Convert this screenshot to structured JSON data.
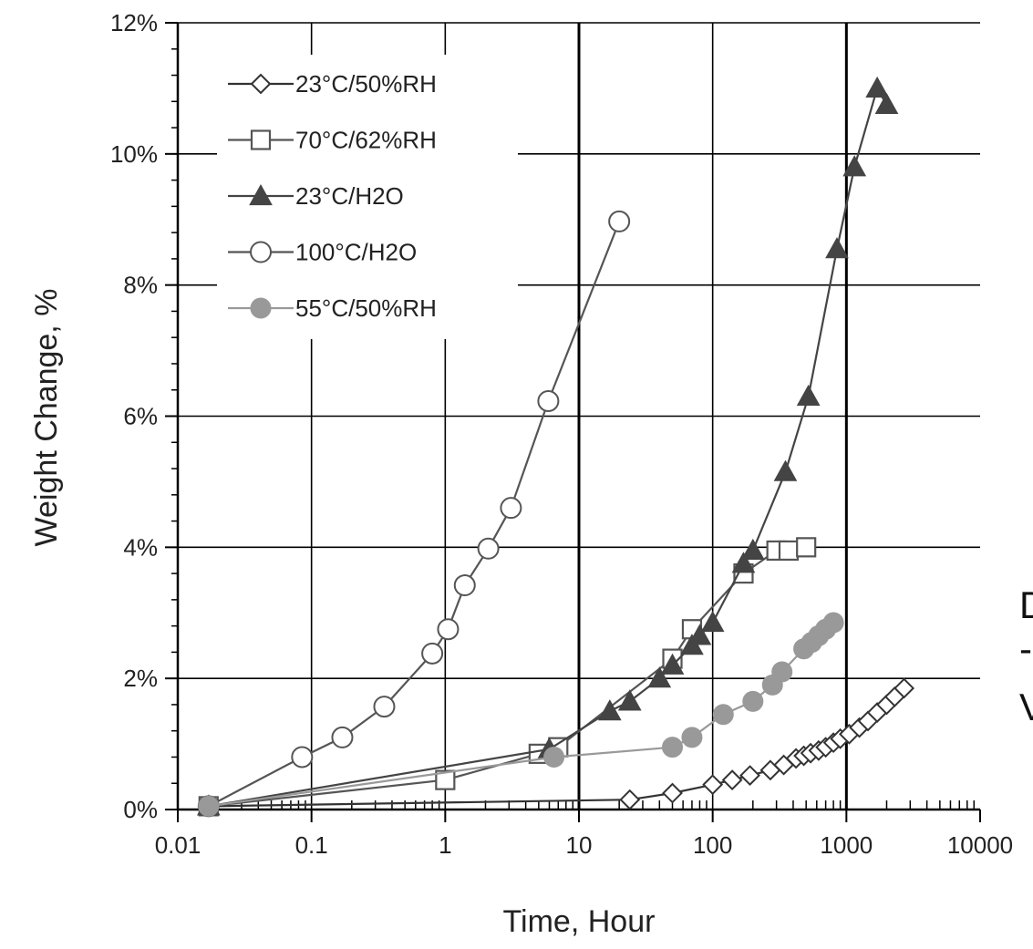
{
  "chart_data": {
    "type": "line",
    "title": "",
    "xlabel": "Time, Hour",
    "ylabel": "Weight Change, %",
    "xscale": "log",
    "xlim": [
      0.01,
      10000
    ],
    "ylim": [
      0,
      12
    ],
    "x_ticks": [
      "0.01",
      "0.1",
      "1",
      "10",
      "100",
      "1000",
      "10000"
    ],
    "y_ticks": [
      "0%",
      "2%",
      "4%",
      "6%",
      "8%",
      "10%",
      "12%"
    ],
    "grid": true,
    "legend_position": "top-left",
    "series": [
      {
        "name": "23°C/50%RH",
        "marker": "diamond-open",
        "color": "#333333",
        "points": [
          [
            0.017,
            0.05
          ],
          [
            24,
            0.15
          ],
          [
            50,
            0.25
          ],
          [
            100,
            0.38
          ],
          [
            140,
            0.45
          ],
          [
            190,
            0.52
          ],
          [
            270,
            0.6
          ],
          [
            340,
            0.68
          ],
          [
            420,
            0.78
          ],
          [
            480,
            0.82
          ],
          [
            540,
            0.86
          ],
          [
            620,
            0.9
          ],
          [
            700,
            0.95
          ],
          [
            800,
            1.02
          ],
          [
            900,
            1.08
          ],
          [
            1050,
            1.15
          ],
          [
            1250,
            1.25
          ],
          [
            1450,
            1.35
          ],
          [
            1700,
            1.48
          ],
          [
            2000,
            1.6
          ],
          [
            2300,
            1.72
          ],
          [
            2700,
            1.85
          ]
        ]
      },
      {
        "name": "70°C/62%RH",
        "marker": "square-open",
        "color": "#555555",
        "points": [
          [
            0.017,
            0.05
          ],
          [
            1,
            0.45
          ],
          [
            5,
            0.85
          ],
          [
            7,
            0.95
          ],
          [
            50,
            2.3
          ],
          [
            70,
            2.75
          ],
          [
            170,
            3.6
          ],
          [
            300,
            3.95
          ],
          [
            370,
            3.95
          ],
          [
            500,
            4.0
          ]
        ]
      },
      {
        "name": "23°C/H2O",
        "marker": "triangle-filled",
        "color": "#444444",
        "points": [
          [
            0.017,
            0.05
          ],
          [
            6,
            0.92
          ],
          [
            17,
            1.5
          ],
          [
            24,
            1.65
          ],
          [
            40,
            2.0
          ],
          [
            50,
            2.2
          ],
          [
            70,
            2.5
          ],
          [
            80,
            2.65
          ],
          [
            100,
            2.85
          ],
          [
            170,
            3.75
          ],
          [
            200,
            3.95
          ],
          [
            350,
            5.15
          ],
          [
            520,
            6.3
          ],
          [
            850,
            8.55
          ],
          [
            1150,
            9.8
          ],
          [
            1700,
            11.0
          ],
          [
            2000,
            10.75
          ]
        ]
      },
      {
        "name": "100°C/H2O",
        "marker": "circle-open",
        "color": "#555555",
        "points": [
          [
            0.017,
            0.05
          ],
          [
            0.085,
            0.8
          ],
          [
            0.17,
            1.1
          ],
          [
            0.35,
            1.57
          ],
          [
            0.8,
            2.38
          ],
          [
            1.05,
            2.75
          ],
          [
            1.4,
            3.42
          ],
          [
            2.1,
            3.98
          ],
          [
            3.1,
            4.6
          ],
          [
            5.9,
            6.23
          ],
          [
            20,
            8.97
          ]
        ]
      },
      {
        "name": "55°C/50%RH",
        "marker": "circle-filled",
        "color": "#999999",
        "points": [
          [
            0.017,
            0.05
          ],
          [
            6.5,
            0.8
          ],
          [
            50,
            0.95
          ],
          [
            70,
            1.1
          ],
          [
            120,
            1.45
          ],
          [
            200,
            1.65
          ],
          [
            280,
            1.9
          ],
          [
            330,
            2.1
          ],
          [
            480,
            2.45
          ],
          [
            550,
            2.55
          ],
          [
            620,
            2.65
          ],
          [
            700,
            2.75
          ],
          [
            800,
            2.85
          ]
        ]
      }
    ]
  },
  "side_text": {
    "line1": "D",
    "line2": "-",
    "line3": "V"
  }
}
